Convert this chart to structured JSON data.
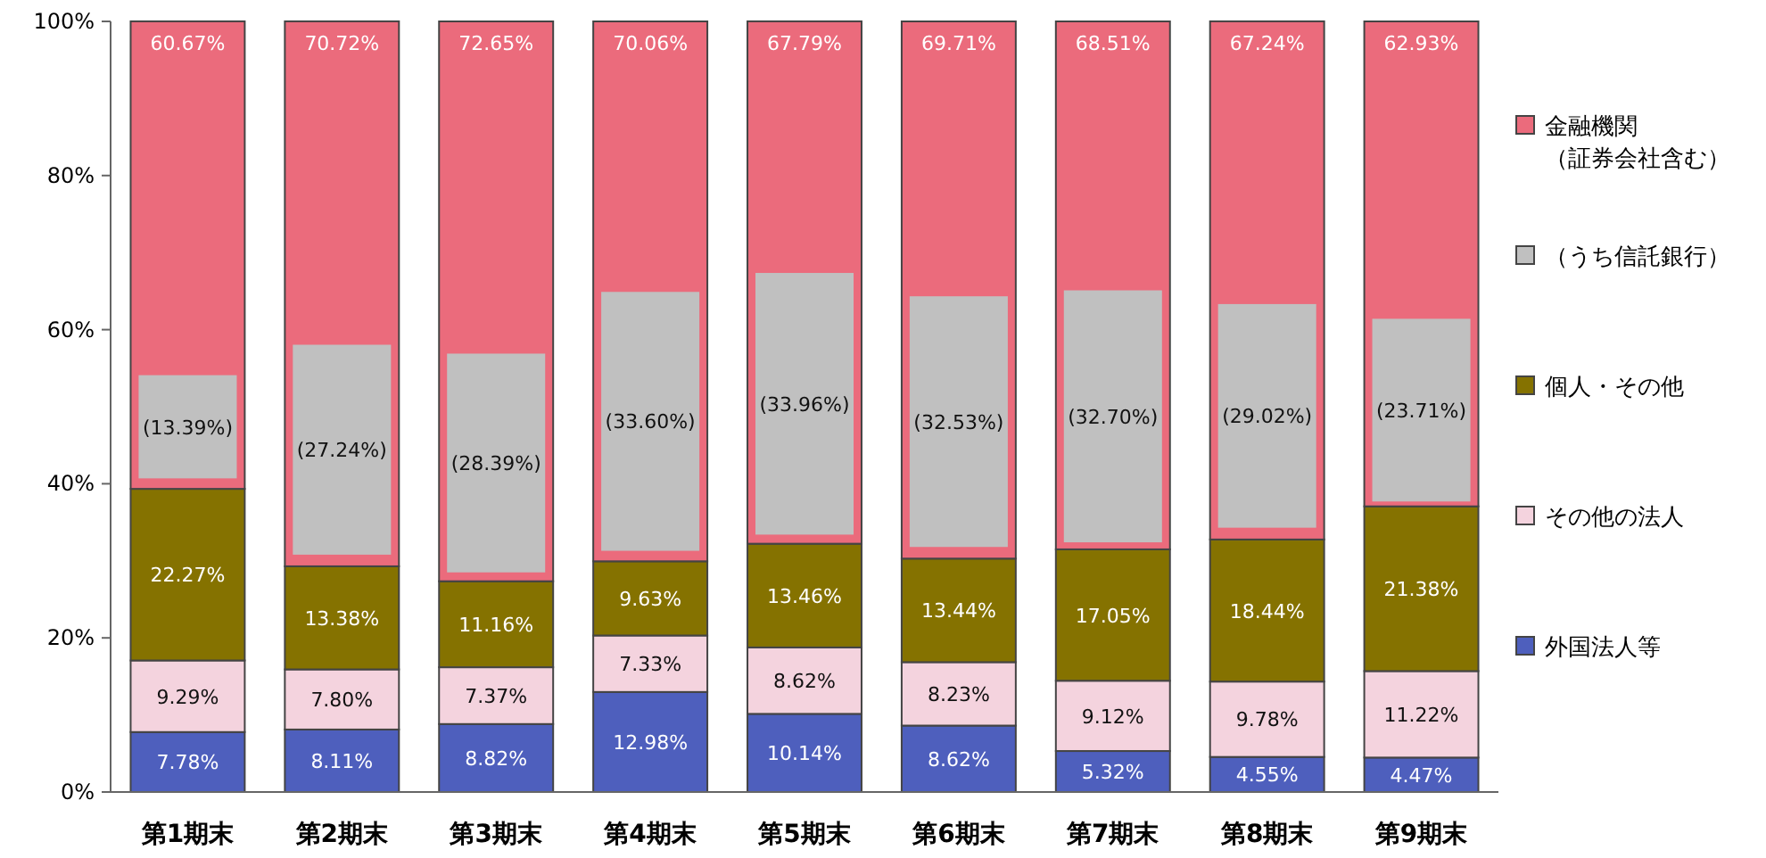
{
  "chart_data": {
    "type": "bar",
    "categories": [
      "第1期末",
      "第2期末",
      "第3期末",
      "第4期末",
      "第5期末",
      "第6期末",
      "第7期末",
      "第8期末",
      "第9期末"
    ],
    "ylim": [
      0,
      100
    ],
    "yticks": [
      {
        "value": 0,
        "label": "0%"
      },
      {
        "value": 20,
        "label": "20%"
      },
      {
        "value": 40,
        "label": "40%"
      },
      {
        "value": 60,
        "label": "60%"
      },
      {
        "value": 80,
        "label": "80%"
      },
      {
        "value": 100,
        "label": "100%"
      }
    ],
    "grid": false,
    "legend": "right",
    "series": [
      {
        "name": "外国法人等",
        "color": "#4e5fbd",
        "base": [
          0,
          0,
          0,
          0,
          0,
          0,
          0,
          0,
          0
        ],
        "values": [
          7.78,
          8.11,
          8.82,
          12.98,
          10.14,
          8.62,
          5.32,
          4.55,
          4.47
        ],
        "value_labels": [
          "7.78%",
          "8.11%",
          "8.82%",
          "12.98%",
          "10.14%",
          "8.62%",
          "5.32%",
          "4.55%",
          "4.47%"
        ]
      },
      {
        "name": "その他の法人",
        "color": "#f4d3de",
        "base": [
          7.78,
          8.11,
          8.82,
          12.98,
          10.14,
          8.62,
          5.32,
          4.55,
          4.47
        ],
        "values": [
          9.29,
          7.8,
          7.37,
          7.33,
          8.62,
          8.23,
          9.12,
          9.78,
          11.22
        ],
        "value_labels": [
          "9.29%",
          "7.80%",
          "7.37%",
          "7.33%",
          "8.62%",
          "8.23%",
          "9.12%",
          "9.78%",
          "11.22%"
        ]
      },
      {
        "name": "個人・その他",
        "color": "#857200",
        "base": [
          17.07,
          15.91,
          16.19,
          20.31,
          18.76,
          16.85,
          14.44,
          14.33,
          15.69
        ],
        "values": [
          22.27,
          13.38,
          11.16,
          9.63,
          13.46,
          13.44,
          17.05,
          18.44,
          21.38
        ],
        "value_labels": [
          "22.27%",
          "13.38%",
          "11.16%",
          "9.63%",
          "13.46%",
          "13.44%",
          "17.05%",
          "18.44%",
          "21.38%"
        ]
      },
      {
        "name": "（うち信託銀行）",
        "color": "#c0c0c0",
        "base": [
          40.7,
          30.8,
          28.5,
          31.3,
          33.4,
          31.8,
          32.4,
          34.3,
          37.7
        ],
        "values": [
          13.39,
          27.24,
          28.39,
          33.6,
          33.96,
          32.53,
          32.7,
          29.02,
          23.71
        ],
        "value_labels": [
          "(13.39%)",
          "(27.24%)",
          "(28.39%)",
          "(33.60%)",
          "(33.96%)",
          "(32.53%)",
          "(32.70%)",
          "(29.02%)",
          "(23.71%)"
        ]
      },
      {
        "name": "金融機関（証券会社含む）",
        "color": "#eb6b7c",
        "base": [
          39.34,
          29.29,
          27.35,
          29.94,
          32.22,
          30.29,
          31.49,
          32.77,
          37.07
        ],
        "values": [
          60.67,
          70.72,
          72.65,
          70.06,
          67.79,
          69.71,
          68.51,
          67.24,
          62.93
        ],
        "value_labels": [
          "60.67%",
          "70.72%",
          "72.65%",
          "70.06%",
          "67.79%",
          "69.71%",
          "68.51%",
          "67.24%",
          "62.93%"
        ]
      }
    ]
  }
}
